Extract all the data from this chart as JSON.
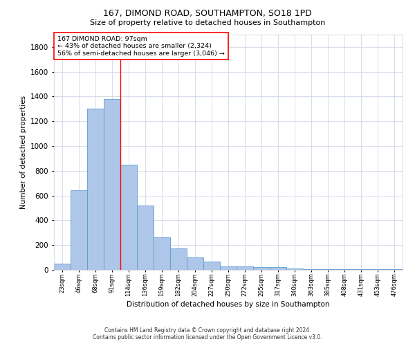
{
  "title1": "167, DIMOND ROAD, SOUTHAMPTON, SO18 1PD",
  "title2": "Size of property relative to detached houses in Southampton",
  "xlabel": "Distribution of detached houses by size in Southampton",
  "ylabel": "Number of detached properties",
  "categories": [
    "23sqm",
    "46sqm",
    "68sqm",
    "91sqm",
    "114sqm",
    "136sqm",
    "159sqm",
    "182sqm",
    "204sqm",
    "227sqm",
    "250sqm",
    "272sqm",
    "295sqm",
    "317sqm",
    "340sqm",
    "363sqm",
    "385sqm",
    "408sqm",
    "431sqm",
    "453sqm",
    "476sqm"
  ],
  "values": [
    50,
    640,
    1300,
    1380,
    850,
    520,
    265,
    175,
    100,
    65,
    30,
    30,
    25,
    20,
    10,
    7,
    7,
    5,
    4,
    3,
    3
  ],
  "bar_color": "#aec6e8",
  "bar_edge_color": "#5b9bd5",
  "vline_color": "red",
  "annotation_title": "167 DIMOND ROAD: 97sqm",
  "annotation_line1": "← 43% of detached houses are smaller (2,324)",
  "annotation_line2": "56% of semi-detached houses are larger (3,046) →",
  "annotation_box_color": "white",
  "annotation_box_edge": "red",
  "ylim": [
    0,
    1900
  ],
  "yticks": [
    0,
    200,
    400,
    600,
    800,
    1000,
    1200,
    1400,
    1600,
    1800
  ],
  "footer1": "Contains HM Land Registry data © Crown copyright and database right 2024.",
  "footer2": "Contains public sector information licensed under the Open Government Licence v3.0.",
  "bg_color": "#ffffff",
  "grid_color": "#d0d8e8"
}
